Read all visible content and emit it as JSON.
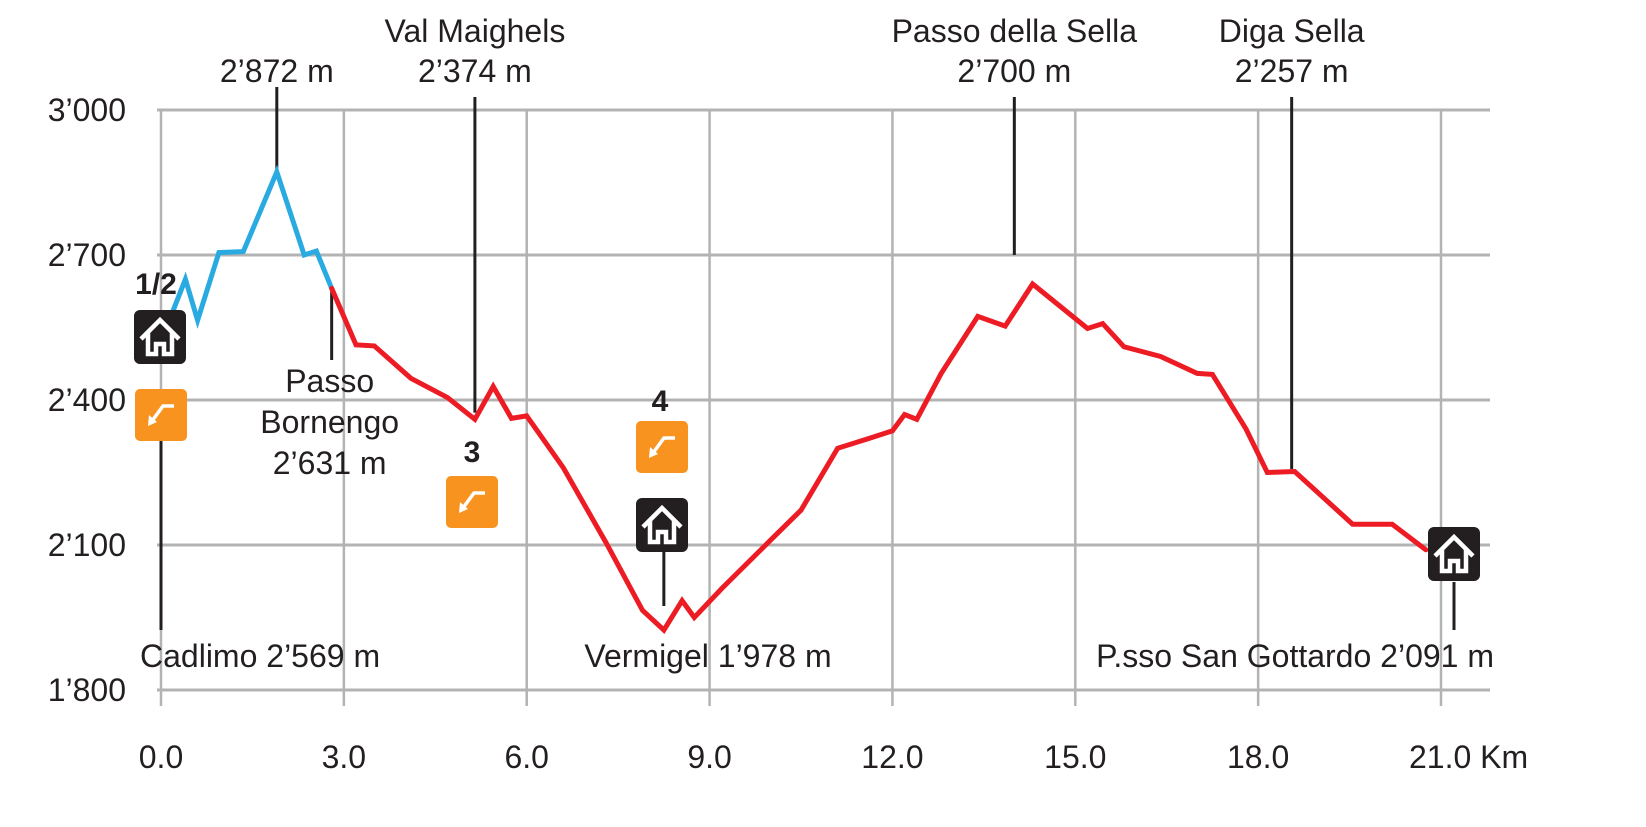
{
  "chart_data": {
    "type": "line",
    "title": "",
    "xlabel": "",
    "ylabel": "",
    "x_unit": "Km",
    "xlim": [
      0,
      21.0
    ],
    "ylim": [
      1800,
      3000
    ],
    "x_ticks": [
      0,
      3,
      6,
      9,
      12,
      15,
      18,
      21
    ],
    "x_tick_labels": [
      "0.0",
      "3.0",
      "6.0",
      "9.0",
      "12.0",
      "15.0",
      "18.0",
      "21.0 Km"
    ],
    "y_ticks": [
      1800,
      2100,
      2400,
      2700,
      3000
    ],
    "y_tick_labels": [
      "1’800",
      "2’100",
      "2’400",
      "2’700",
      "3’000"
    ],
    "grid": true,
    "colors": {
      "segment_1": "#29abe2",
      "segment_2": "#ed1c24",
      "grid": "#b3b3b3",
      "marker": "#231f20",
      "icon_alt": "#f7931e"
    },
    "series": [
      {
        "color": "#29abe2",
        "x": [
          0.15,
          0.4,
          0.6,
          0.95,
          1.35,
          1.9,
          2.35,
          2.55,
          2.8
        ],
        "y": [
          2569,
          2650,
          2565,
          2705,
          2707,
          2872,
          2700,
          2708,
          2631
        ]
      },
      {
        "color": "#ed1c24",
        "x": [
          2.8,
          3.2,
          3.5,
          4.1,
          4.7,
          5.15,
          5.45,
          5.75,
          6.0,
          6.6,
          7.3,
          7.9,
          8.25,
          8.55,
          8.75,
          9.2,
          10.0,
          10.5,
          11.1,
          11.6,
          12.0,
          12.2,
          12.4,
          12.8,
          13.4,
          13.85,
          14.3,
          15.2,
          15.45,
          15.8,
          16.4,
          17.0,
          17.25,
          17.8,
          18.15,
          18.6,
          19.55,
          20.2,
          20.75
        ],
        "y": [
          2631,
          2514,
          2512,
          2445,
          2405,
          2360,
          2428,
          2362,
          2367,
          2260,
          2105,
          1965,
          1924,
          1985,
          1950,
          2010,
          2110,
          2172,
          2300,
          2320,
          2336,
          2370,
          2360,
          2455,
          2573,
          2553,
          2640,
          2548,
          2558,
          2510,
          2490,
          2455,
          2453,
          2340,
          2250,
          2252,
          2143,
          2143,
          2090
        ]
      }
    ],
    "annotations": {
      "peak_1": {
        "x": 1.9,
        "y": 2872,
        "lines": [
          "2’872 m"
        ]
      },
      "val_maighels": {
        "x": 5.15,
        "y": 2374,
        "lines": [
          "Val Maighels",
          "2’374 m"
        ]
      },
      "passo_sella": {
        "x": 14.0,
        "y": 2700,
        "lines": [
          "Passo della Sella",
          "2’700 m"
        ]
      },
      "diga_sella": {
        "x": 18.55,
        "y": 2257,
        "lines": [
          "Diga Sella",
          "2’257 m"
        ]
      },
      "passo_bornengo": {
        "x": 2.8,
        "y": 2631,
        "lines": [
          "Passo",
          "Bornengo",
          "2’631 m"
        ]
      },
      "cadlimo": {
        "x": 0.0,
        "y": 2569,
        "lines": [
          "Cadlimo 2’569 m"
        ]
      },
      "vermigel": {
        "x": 8.25,
        "y": 1978,
        "lines": [
          "Vermigel 1’978 m"
        ]
      },
      "san_gottardo": {
        "x": 21.2,
        "y": 2091,
        "lines": [
          "P.sso San Gottardo 2’091 m"
        ]
      }
    },
    "stage_labels": {
      "s12": "1/2",
      "s3": "3",
      "s4": "4"
    },
    "icons": {
      "house": "house-icon",
      "descent": "descent-arrow-icon"
    }
  }
}
